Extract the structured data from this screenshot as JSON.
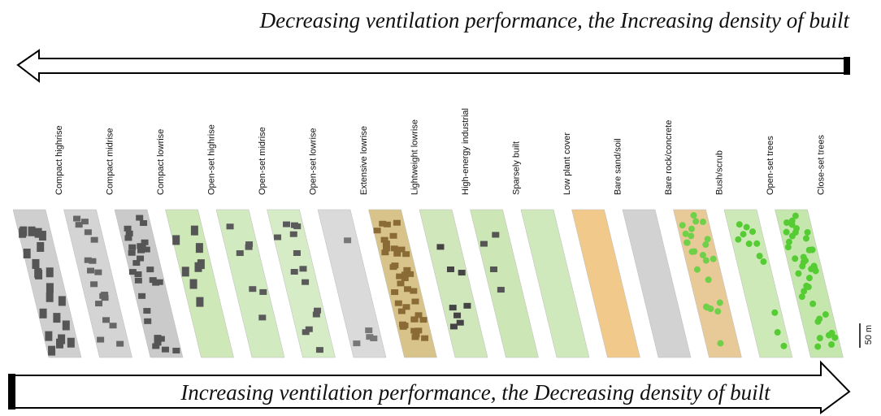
{
  "top_label": "Decreasing ventilation performance, the Increasing density of built",
  "bottom_label": "Increasing ventilation performance, the Decreasing density of built",
  "zones": [
    "Compact highrise",
    "Compact midrise",
    "Compact lowrise",
    "Open-set highrise",
    "Open-set midrise",
    "Open-set lowrise",
    "Extensive lowrise",
    "Lightweight lowrise",
    "High-energy industrial",
    "Sparsely built",
    "Low plant cover",
    "Bare sand/soil",
    "Bare rock/concrete",
    "Bush/scrub",
    "Open-set trees",
    "Close-set trees"
  ],
  "scale_label": "50 m"
}
